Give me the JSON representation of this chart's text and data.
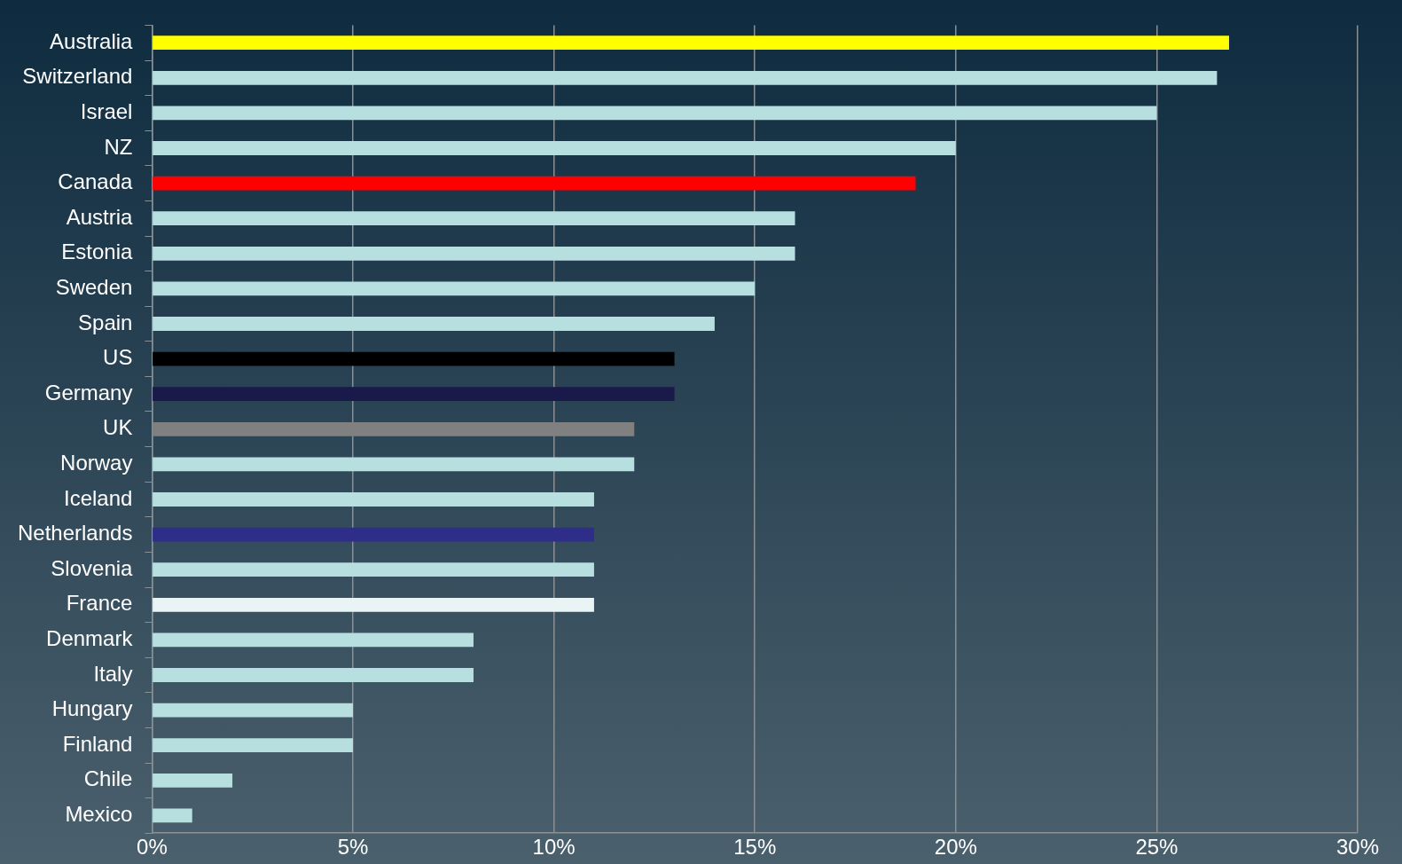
{
  "chart_data": {
    "type": "bar",
    "orientation": "horizontal",
    "categories": [
      "Australia",
      "Switzerland",
      "Israel",
      "NZ",
      "Canada",
      "Austria",
      "Estonia",
      "Sweden",
      "Spain",
      "US",
      "Germany",
      "UK",
      "Norway",
      "Iceland",
      "Netherlands",
      "Slovenia",
      "France",
      "Denmark",
      "Italy",
      "Hungary",
      "Finland",
      "Chile",
      "Mexico"
    ],
    "values": [
      26.8,
      26.5,
      25,
      20,
      19,
      16,
      16,
      15,
      14,
      13,
      13,
      12,
      12,
      11,
      11,
      11,
      11,
      8,
      8,
      5,
      5,
      2,
      1
    ],
    "colors": [
      "#ffff00",
      "#b7dfe0",
      "#b7dfe0",
      "#b7dfe0",
      "#ff0000",
      "#b7dfe0",
      "#b7dfe0",
      "#b7dfe0",
      "#b7dfe0",
      "#000000",
      "#1a1a4a",
      "#808080",
      "#b7dfe0",
      "#b7dfe0",
      "#2e2e8a",
      "#b7dfe0",
      "#eaf4f4",
      "#b7dfe0",
      "#b7dfe0",
      "#b7dfe0",
      "#b7dfe0",
      "#b7dfe0",
      "#b7dfe0"
    ],
    "xlim": [
      0,
      30
    ],
    "xticks": [
      {
        "value": 0,
        "label": "0%"
      },
      {
        "value": 5,
        "label": "5%"
      },
      {
        "value": 10,
        "label": "10%"
      },
      {
        "value": 15,
        "label": "15%"
      },
      {
        "value": 20,
        "label": "20%"
      },
      {
        "value": 25,
        "label": "25%"
      },
      {
        "value": 30,
        "label": "30%"
      }
    ],
    "grid": "x",
    "legend": false
  }
}
